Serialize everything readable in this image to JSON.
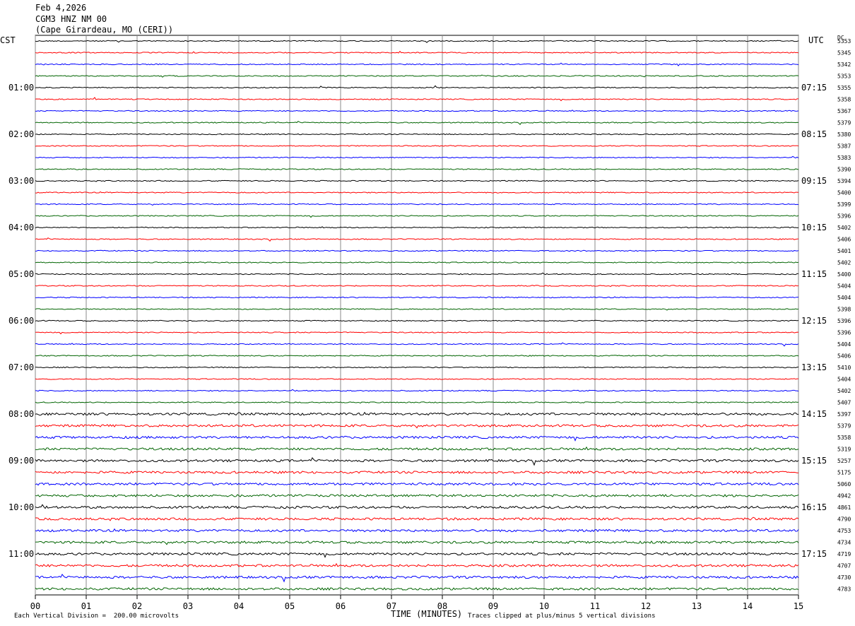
{
  "header": {
    "date": "Feb 4,2026",
    "station": "CGM3 HNZ NM 00",
    "location": "(Cape Girardeau, MO (CERI))"
  },
  "labels": {
    "left_zone": "CST",
    "right_zone": "UTC",
    "dc_header": "DC"
  },
  "chart_data": {
    "type": "line",
    "title": "CGM3 HNZ NM 00",
    "xlabel": "TIME (MINUTES)",
    "x_range": [
      0,
      15
    ],
    "x_ticks": [
      "00",
      "01",
      "02",
      "03",
      "04",
      "05",
      "06",
      "07",
      "08",
      "09",
      "10",
      "11",
      "12",
      "13",
      "14",
      "15"
    ],
    "row_minutes": 15,
    "trace_colors": [
      "#000000",
      "#ff0000",
      "#0000ff",
      "#006400"
    ],
    "left_times": [
      "01:00",
      "02:00",
      "03:00",
      "04:00",
      "05:00",
      "06:00",
      "07:00",
      "08:00",
      "09:00",
      "10:00",
      "11:00"
    ],
    "right_times": [
      "07:15",
      "08:15",
      "09:15",
      "10:15",
      "11:15",
      "12:15",
      "13:15",
      "14:15",
      "15:15",
      "16:15",
      "17:15"
    ],
    "dc_offsets": [
      5353,
      5345,
      5342,
      5353,
      5355,
      5358,
      5367,
      5379,
      5380,
      5387,
      5383,
      5390,
      5394,
      5400,
      5399,
      5396,
      5402,
      5406,
      5401,
      5402,
      5400,
      5404,
      5404,
      5398,
      5396,
      5396,
      5404,
      5406,
      5410,
      5404,
      5402,
      5407,
      5397,
      5379,
      5358,
      5319,
      5257,
      5175,
      5060,
      4942,
      4861,
      4790,
      4753,
      4734,
      4719,
      4707,
      4730,
      4783
    ],
    "grid": true
  },
  "footer": {
    "division_note": "Each Vertical Division =  200.00 microvolts",
    "clip_note": "Traces clipped at plus/minus 5 vertical divisions"
  }
}
